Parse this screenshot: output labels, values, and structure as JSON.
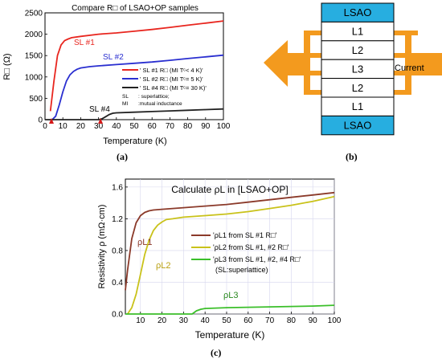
{
  "panel_a": {
    "caption": "(a)",
    "title": "Compare R□ of LSAO+OP samples",
    "ylabel": "R□ (Ω)",
    "xlabel": "Temperature (K)",
    "series_labels": [
      "SL #1",
      "SL #2",
      "SL #4"
    ],
    "legend": [
      "' SL #1 R□ (MI Tᶜ< 4 K)'",
      "' SL #2 R□ (MI Tᶜ= 5 K)'",
      "' SL #4 R□ (MI Tᶜ= 30 K)'"
    ],
    "notes": [
      {
        "key": "SL",
        "text": ": superlattice;"
      },
      {
        "key": "MI",
        "text": ":mutual inductance"
      }
    ],
    "colors": {
      "SL1": "#e8261f",
      "SL2": "#2a2fd0",
      "SL4": "#222222"
    }
  },
  "panel_b": {
    "caption": "(b)",
    "layers": [
      "LSAO",
      "L1",
      "L2",
      "L3",
      "L2",
      "L1",
      "LSAO"
    ],
    "current_label": "Current",
    "colors": {
      "substrate": "#27aee0",
      "arrow": "#f39a1e"
    }
  },
  "panel_c": {
    "caption": "(c)",
    "title": "Calculate ρL in [LSAO+OP]",
    "ylabel": "Resistivity ρ (mΩ·cm)",
    "xlabel": "Temperature (K)",
    "curve_labels": [
      "ρL1",
      "ρL2",
      "ρL3"
    ],
    "legend": [
      "'ρL1 from SL #1 R□'",
      "'ρL2 from SL #1, #2 R□'",
      "'ρL3 from SL #1, #2, #4 R□'"
    ],
    "legend_note": "(SL:superlattice)",
    "colors": {
      "L1": "#8b3a2a",
      "L2": "#c9c21a",
      "L3": "#3bbf2a"
    }
  },
  "chart_data": [
    {
      "type": "line",
      "title": "Compare R□ of LSAO+OP samples",
      "xlabel": "Temperature (K)",
      "ylabel": "R□ (Ω)",
      "xlim": [
        0,
        100
      ],
      "ylim": [
        0,
        2500
      ],
      "xticks": [
        0,
        10,
        20,
        30,
        40,
        50,
        60,
        70,
        80,
        90,
        100
      ],
      "yticks": [
        0,
        500,
        1000,
        1500,
        2000,
        2500
      ],
      "legend_position": "center-right",
      "series": [
        {
          "name": "' SL #1 R□ (MI Tᶜ< 4 K)'",
          "color": "#e8261f",
          "x": [
            3,
            5,
            7,
            9,
            11,
            13,
            15,
            20,
            30,
            40,
            50,
            60,
            70,
            80,
            90,
            100
          ],
          "y": [
            200,
            900,
            1500,
            1750,
            1850,
            1890,
            1920,
            1950,
            2000,
            2030,
            2070,
            2110,
            2160,
            2210,
            2260,
            2310
          ]
        },
        {
          "name": "' SL #2 R□ (MI Tᶜ= 5 K)'",
          "color": "#2a2fd0",
          "x": [
            4,
            6,
            8,
            10,
            12,
            14,
            16,
            18,
            20,
            25,
            30,
            40,
            50,
            60,
            70,
            80,
            90,
            100
          ],
          "y": [
            0,
            80,
            350,
            650,
            900,
            1050,
            1130,
            1180,
            1210,
            1240,
            1260,
            1290,
            1320,
            1350,
            1390,
            1430,
            1470,
            1510
          ]
        },
        {
          "name": "' SL #4 R□ (MI Tᶜ= 30 K)'",
          "color": "#222222",
          "x": [
            0,
            30,
            32,
            34,
            36,
            38,
            40,
            50,
            60,
            70,
            80,
            90,
            100
          ],
          "y": [
            0,
            0,
            20,
            70,
            120,
            150,
            160,
            175,
            190,
            205,
            220,
            235,
            250
          ]
        }
      ],
      "annotations": [
        "SL #1",
        "SL #2",
        "SL #4"
      ]
    },
    {
      "type": "line",
      "title": "Calculate ρL in [LSAO+OP]",
      "xlabel": "Temperature (K)",
      "ylabel": "Resistivity ρ (mΩ·cm)",
      "xlim": [
        3,
        100
      ],
      "ylim": [
        0,
        1.7
      ],
      "xticks": [
        10,
        20,
        30,
        40,
        50,
        60,
        70,
        80,
        90,
        100
      ],
      "yticks": [
        0.0,
        0.4,
        0.8,
        1.2,
        1.6
      ],
      "grid": true,
      "legend_position": "center-right",
      "series": [
        {
          "name": "'ρL1 from SL #1 R□'",
          "color": "#8b3a2a",
          "x": [
            3,
            4,
            6,
            8,
            10,
            12,
            14,
            16,
            20,
            30,
            40,
            50,
            60,
            70,
            80,
            90,
            100
          ],
          "y": [
            0.3,
            0.55,
            0.95,
            1.15,
            1.24,
            1.28,
            1.3,
            1.31,
            1.32,
            1.34,
            1.36,
            1.38,
            1.41,
            1.44,
            1.47,
            1.5,
            1.53
          ]
        },
        {
          "name": "'ρL2 from SL #1, #2 R□'",
          "color": "#c9c21a",
          "x": [
            4,
            6,
            8,
            10,
            12,
            14,
            16,
            18,
            20,
            22,
            25,
            30,
            40,
            50,
            60,
            70,
            80,
            90,
            100
          ],
          "y": [
            0.0,
            0.08,
            0.25,
            0.5,
            0.75,
            0.93,
            1.05,
            1.12,
            1.16,
            1.19,
            1.2,
            1.22,
            1.24,
            1.26,
            1.29,
            1.33,
            1.37,
            1.42,
            1.48
          ]
        },
        {
          "name": "'ρL3 from SL #1, #2, #4 R□'",
          "color": "#3bbf2a",
          "x": [
            3,
            34,
            36,
            38,
            40,
            50,
            60,
            70,
            80,
            90,
            100
          ],
          "y": [
            0.0,
            0.0,
            0.04,
            0.06,
            0.07,
            0.08,
            0.085,
            0.09,
            0.095,
            0.1,
            0.11
          ]
        }
      ],
      "annotations": [
        "ρL1",
        "ρL2",
        "ρL3"
      ]
    }
  ]
}
